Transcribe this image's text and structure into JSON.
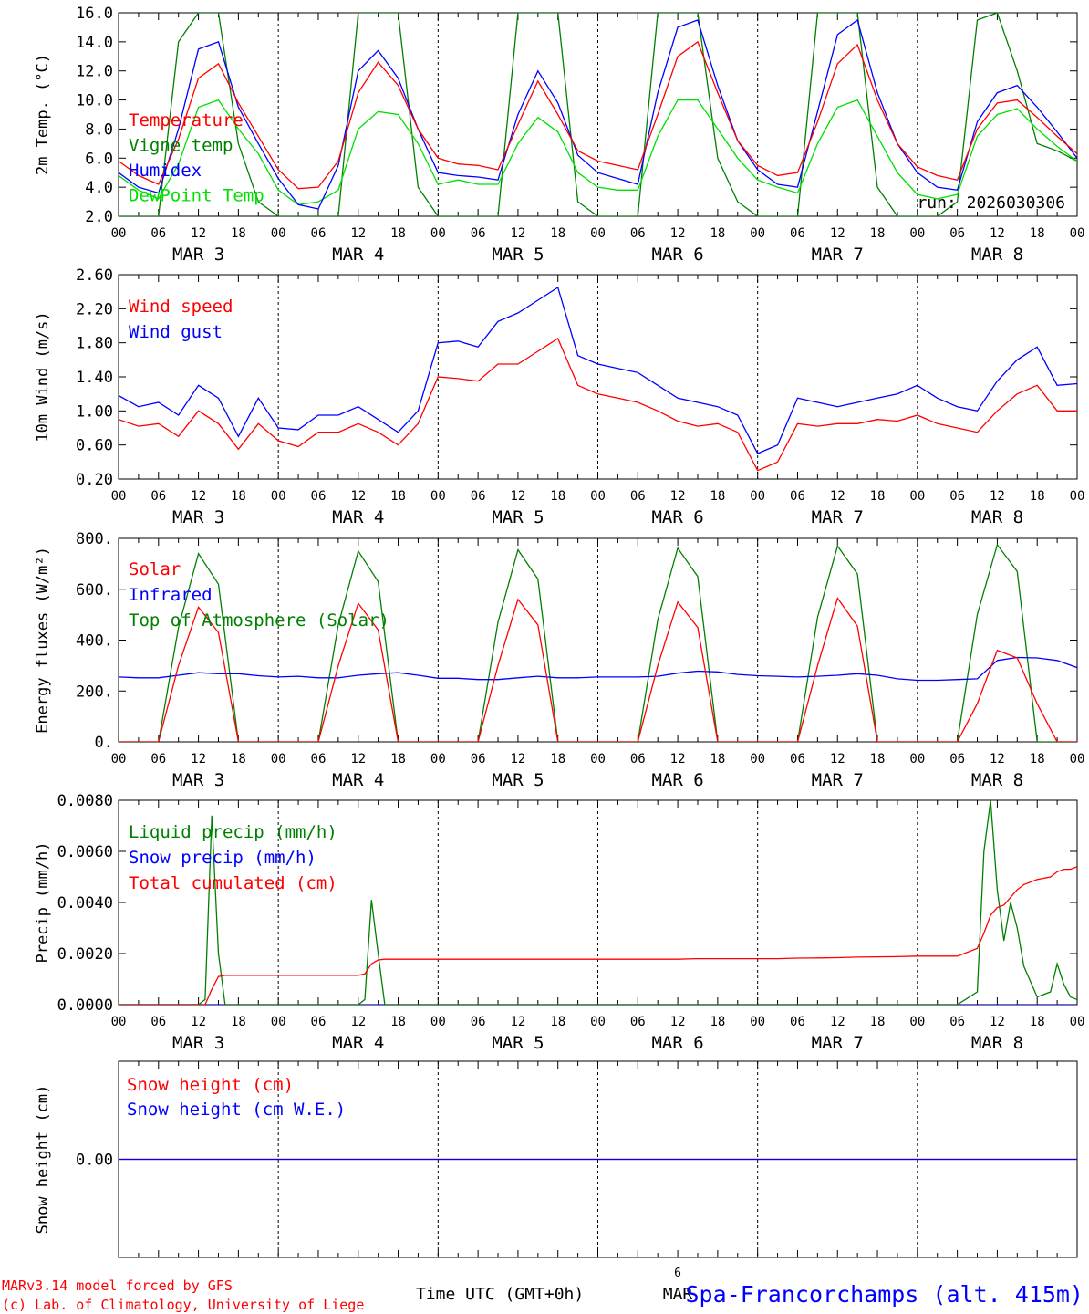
{
  "days": [
    "MAR  3",
    "MAR  4",
    "MAR  5",
    "MAR  6",
    "MAR  7",
    "MAR  8"
  ],
  "hour_ticks": [
    "00",
    "06",
    "12",
    "18"
  ],
  "final_tick": "00",
  "footer": {
    "model": "MARv3.14 model forced by GFS",
    "lab": "(c) Lab. of Climatology, University of Liege",
    "time_axis": "Time UTC (GMT+0h)",
    "station": "Spa-Francorchamps (alt. 415m)",
    "stray_day": "6",
    "stray_month": "MAR"
  },
  "colors": {
    "red": "#ff0000",
    "green": "#008000",
    "blue": "#0000ff",
    "lightgreen": "#00e000"
  },
  "chart_data": [
    {
      "type": "line",
      "ylabel": "2m Temp. (°C)",
      "ylim": [
        2.0,
        16.0
      ],
      "yticks": [
        "2.0",
        "4.0",
        "6.0",
        "8.0",
        "10.0",
        "12.0",
        "14.0",
        "16.0"
      ],
      "annotation": "run: 2026030306",
      "x_hours": [
        0,
        3,
        6,
        9,
        12,
        15,
        18,
        21,
        24,
        27,
        30,
        33,
        36,
        39,
        42,
        45,
        48,
        51,
        54,
        57,
        60,
        63,
        66,
        69,
        72,
        75,
        78,
        81,
        84,
        87,
        90,
        93,
        96,
        99,
        102,
        105,
        108,
        111,
        114,
        117,
        120,
        123,
        126,
        129,
        132,
        135,
        138,
        141,
        144
      ],
      "series": [
        {
          "name": "Temperature",
          "color": "red",
          "values": [
            5.8,
            4.8,
            4.2,
            7.3,
            11.5,
            12.5,
            9.8,
            7.5,
            5.2,
            3.9,
            4.0,
            5.8,
            10.5,
            12.6,
            11.0,
            8.0,
            6.0,
            5.6,
            5.5,
            5.2,
            8.3,
            11.3,
            9.0,
            6.5,
            5.8,
            5.5,
            5.2,
            9.0,
            13.0,
            14.0,
            10.5,
            7.2,
            5.5,
            4.8,
            5.0,
            8.5,
            12.5,
            13.8,
            10.0,
            7.0,
            5.4,
            4.8,
            4.5,
            8.0,
            9.8,
            10.0,
            8.8,
            7.5,
            6.3
          ]
        },
        {
          "name": "Vigne temp",
          "color": "green",
          "values": [
            2.0,
            2.0,
            2.0,
            14.0,
            16.0,
            16.0,
            7.0,
            3.0,
            2.0,
            2.0,
            2.0,
            2.0,
            16.0,
            16.0,
            16.0,
            4.0,
            2.0,
            2.0,
            2.0,
            2.0,
            16.0,
            16.0,
            16.0,
            3.0,
            2.0,
            2.0,
            2.0,
            16.0,
            16.0,
            16.0,
            6.0,
            3.0,
            2.0,
            2.0,
            2.0,
            16.0,
            16.0,
            16.0,
            4.0,
            2.0,
            2.0,
            2.0,
            3.0,
            15.5,
            16.0,
            12.0,
            7.0,
            6.5,
            5.8
          ]
        },
        {
          "name": "Humidex",
          "color": "blue",
          "values": [
            5.0,
            4.0,
            3.6,
            8.0,
            13.5,
            14.0,
            9.5,
            7.0,
            4.6,
            2.8,
            2.5,
            5.5,
            12.0,
            13.4,
            11.5,
            8.0,
            5.0,
            4.8,
            4.7,
            4.5,
            9.0,
            12.0,
            9.8,
            6.2,
            5.0,
            4.6,
            4.2,
            10.5,
            15.0,
            15.5,
            11.0,
            7.2,
            5.2,
            4.2,
            4.0,
            9.2,
            14.5,
            15.5,
            10.5,
            7.0,
            5.0,
            4.0,
            3.8,
            8.5,
            10.5,
            11.0,
            9.5,
            7.8,
            6.0
          ]
        },
        {
          "name": "DewPoint Temp",
          "color": "lightgreen",
          "values": [
            4.8,
            3.8,
            3.2,
            5.6,
            9.5,
            10.0,
            8.0,
            6.3,
            3.8,
            2.8,
            3.0,
            3.8,
            8.0,
            9.2,
            9.0,
            7.0,
            4.2,
            4.5,
            4.2,
            4.2,
            7.0,
            8.8,
            7.8,
            5.0,
            4.0,
            3.8,
            3.8,
            7.5,
            10.0,
            10.0,
            8.0,
            6.0,
            4.5,
            4.0,
            3.6,
            7.0,
            9.5,
            10.0,
            7.5,
            5.0,
            3.5,
            3.2,
            3.5,
            7.5,
            9.0,
            9.4,
            8.0,
            6.8,
            5.8
          ]
        }
      ]
    },
    {
      "type": "line",
      "ylabel": "10m Wind (m/s)",
      "ylim": [
        0.2,
        2.6
      ],
      "yticks": [
        "0.20",
        "0.60",
        "1.00",
        "1.40",
        "1.80",
        "2.20",
        "2.60"
      ],
      "x_hours": [
        0,
        3,
        6,
        9,
        12,
        15,
        18,
        21,
        24,
        27,
        30,
        33,
        36,
        39,
        42,
        45,
        48,
        51,
        54,
        57,
        60,
        63,
        66,
        69,
        72,
        75,
        78,
        81,
        84,
        87,
        90,
        93,
        96,
        99,
        102,
        105,
        108,
        111,
        114,
        117,
        120,
        123,
        126,
        129,
        132,
        135,
        138,
        141,
        144
      ],
      "series": [
        {
          "name": "Wind speed",
          "color": "red",
          "values": [
            0.9,
            0.82,
            0.85,
            0.7,
            1.0,
            0.85,
            0.55,
            0.85,
            0.65,
            0.58,
            0.75,
            0.75,
            0.85,
            0.75,
            0.6,
            0.85,
            1.4,
            1.38,
            1.35,
            1.55,
            1.55,
            1.7,
            1.85,
            1.3,
            1.2,
            1.15,
            1.1,
            1.0,
            0.88,
            0.82,
            0.85,
            0.75,
            0.3,
            0.4,
            0.85,
            0.82,
            0.85,
            0.85,
            0.9,
            0.88,
            0.95,
            0.85,
            0.8,
            0.75,
            1.0,
            1.2,
            1.3,
            1.0,
            1.0
          ]
        },
        {
          "name": "Wind gust",
          "color": "blue",
          "values": [
            1.18,
            1.05,
            1.1,
            0.95,
            1.3,
            1.15,
            0.7,
            1.15,
            0.8,
            0.78,
            0.95,
            0.95,
            1.05,
            0.9,
            0.75,
            1.0,
            1.8,
            1.82,
            1.75,
            2.05,
            2.15,
            2.3,
            2.45,
            1.65,
            1.55,
            1.5,
            1.45,
            1.3,
            1.15,
            1.1,
            1.05,
            0.95,
            0.5,
            0.6,
            1.15,
            1.1,
            1.05,
            1.1,
            1.15,
            1.2,
            1.3,
            1.15,
            1.05,
            1.0,
            1.35,
            1.6,
            1.75,
            1.3,
            1.32
          ]
        }
      ]
    },
    {
      "type": "line",
      "ylabel": "Energy fluxes (W/m²)",
      "ylim": [
        0,
        800
      ],
      "yticks": [
        "0.",
        "200.",
        "400.",
        "600.",
        "800."
      ],
      "x_hours": [
        0,
        3,
        6,
        9,
        12,
        15,
        18,
        21,
        24,
        27,
        30,
        33,
        36,
        39,
        42,
        45,
        48,
        51,
        54,
        57,
        60,
        63,
        66,
        69,
        72,
        75,
        78,
        81,
        84,
        87,
        90,
        93,
        96,
        99,
        102,
        105,
        108,
        111,
        114,
        117,
        120,
        123,
        126,
        129,
        132,
        135,
        138,
        141,
        144
      ],
      "series": [
        {
          "name": "Solar",
          "color": "red",
          "values": [
            0,
            0,
            0,
            300,
            530,
            430,
            0,
            0,
            0,
            0,
            0,
            300,
            545,
            440,
            0,
            0,
            0,
            0,
            0,
            300,
            560,
            460,
            0,
            0,
            0,
            0,
            0,
            300,
            550,
            450,
            0,
            0,
            0,
            0,
            0,
            300,
            565,
            455,
            0,
            0,
            0,
            0,
            0,
            150,
            360,
            330,
            150,
            0,
            0
          ]
        },
        {
          "name": "Infrared",
          "color": "blue",
          "values": [
            255,
            252,
            252,
            262,
            272,
            268,
            268,
            260,
            255,
            258,
            252,
            252,
            262,
            268,
            272,
            262,
            250,
            250,
            245,
            245,
            252,
            258,
            252,
            252,
            255,
            255,
            255,
            258,
            270,
            278,
            275,
            265,
            260,
            258,
            255,
            258,
            262,
            268,
            262,
            248,
            242,
            242,
            245,
            248,
            320,
            332,
            330,
            320,
            292
          ]
        },
        {
          "name": "Top of Atmosphere (Solar)",
          "color": "green",
          "values": [
            0,
            0,
            0,
            450,
            740,
            620,
            0,
            0,
            0,
            0,
            0,
            460,
            750,
            630,
            0,
            0,
            0,
            0,
            0,
            470,
            755,
            640,
            0,
            0,
            0,
            0,
            0,
            480,
            762,
            650,
            0,
            0,
            0,
            0,
            0,
            490,
            770,
            660,
            0,
            0,
            0,
            0,
            0,
            500,
            775,
            670,
            0,
            0,
            0
          ]
        }
      ]
    },
    {
      "type": "line",
      "ylabel": "Precip (mm/h)",
      "ylim": [
        0,
        0.008
      ],
      "yticks": [
        "0.0000",
        "0.0020",
        "0.0040",
        "0.0060",
        "0.0080"
      ],
      "x_hours": [
        0,
        3,
        6,
        9,
        12,
        13,
        14,
        15,
        16,
        18,
        21,
        24,
        27,
        30,
        33,
        36,
        37,
        38,
        39,
        40,
        42,
        45,
        48,
        51,
        54,
        57,
        60,
        63,
        66,
        69,
        72,
        75,
        78,
        81,
        84,
        87,
        90,
        93,
        96,
        99,
        102,
        105,
        108,
        111,
        114,
        117,
        120,
        123,
        126,
        129,
        130,
        131,
        132,
        133,
        134,
        135,
        136,
        138,
        140,
        141,
        142,
        143,
        144
      ],
      "series": [
        {
          "name": "Liquid precip (mm/h)",
          "color": "green",
          "values": [
            0,
            0,
            0,
            0,
            0,
            0.0002,
            0.0074,
            0.002,
            0,
            0,
            0,
            0,
            0,
            0,
            0,
            0,
            0.0002,
            0.0041,
            0.002,
            0,
            0,
            0,
            0,
            0,
            0,
            0,
            0,
            0,
            0,
            0,
            0,
            0,
            0,
            0,
            0,
            0,
            0,
            0,
            0,
            0,
            0,
            0,
            0,
            0,
            0,
            0,
            0,
            0,
            0,
            0.0005,
            0.006,
            0.008,
            0.0045,
            0.0025,
            0.004,
            0.003,
            0.0015,
            0.0003,
            0.0005,
            0.0016,
            0.0008,
            0.0003,
            0.0002
          ]
        },
        {
          "name": "Snow precip (mm/h)",
          "color": "blue",
          "values": [
            0,
            0,
            0,
            0,
            0,
            0,
            0,
            0,
            0,
            0,
            0,
            0,
            0,
            0,
            0,
            0,
            0,
            0,
            0,
            0,
            0,
            0,
            0,
            0,
            0,
            0,
            0,
            0,
            0,
            0,
            0,
            0,
            0,
            0,
            0,
            0,
            0,
            0,
            0,
            0,
            0,
            0,
            0,
            0,
            0,
            0,
            0,
            0,
            0,
            0,
            0,
            0,
            0,
            0,
            0,
            0,
            0,
            0,
            0,
            0,
            0,
            0,
            0
          ]
        },
        {
          "name": "Total cumulated (cm)",
          "color": "red",
          "values": [
            0,
            0,
            0,
            0,
            0,
            0,
            0.0006,
            0.0011,
            0.00115,
            0.00115,
            0.00115,
            0.00115,
            0.00115,
            0.00115,
            0.00115,
            0.00115,
            0.0012,
            0.0016,
            0.00175,
            0.00178,
            0.00178,
            0.00178,
            0.00178,
            0.00178,
            0.00178,
            0.00178,
            0.00178,
            0.00178,
            0.00178,
            0.00178,
            0.00178,
            0.00178,
            0.00178,
            0.00178,
            0.00178,
            0.0018,
            0.0018,
            0.0018,
            0.0018,
            0.0018,
            0.00182,
            0.00183,
            0.00184,
            0.00186,
            0.00187,
            0.00188,
            0.0019,
            0.0019,
            0.0019,
            0.0022,
            0.0028,
            0.0035,
            0.0038,
            0.0039,
            0.0042,
            0.0045,
            0.0047,
            0.0049,
            0.005,
            0.0052,
            0.0053,
            0.0053,
            0.0054
          ]
        }
      ]
    },
    {
      "type": "line",
      "ylabel": "Snow height (cm)",
      "ylim": [
        -1,
        1
      ],
      "yticks": [
        "0.00"
      ],
      "x_hours": [
        0,
        144
      ],
      "series": [
        {
          "name": "Snow height (cm)",
          "color": "red",
          "values": [
            0,
            0
          ]
        },
        {
          "name": "Snow height (cm W.E.)",
          "color": "blue",
          "values": [
            0,
            0
          ]
        }
      ]
    }
  ]
}
